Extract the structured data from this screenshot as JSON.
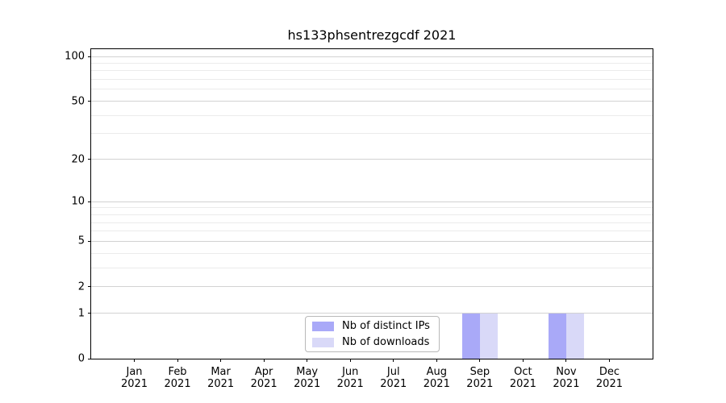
{
  "figure": {
    "title": "hs133phsentrezgcdf 2021"
  },
  "chart_data": {
    "type": "bar",
    "title": "hs133phsentrezgcdf 2021",
    "xlabel": "",
    "ylabel": "",
    "categories": [
      "Jan",
      "Feb",
      "Mar",
      "Apr",
      "May",
      "Jun",
      "Jul",
      "Aug",
      "Sep",
      "Oct",
      "Nov",
      "Dec"
    ],
    "x_tick_year": "2021",
    "series": [
      {
        "name": "Nb of distinct IPs",
        "color": "#a9a9f8",
        "values": [
          0,
          0,
          0,
          0,
          0,
          0,
          0,
          0,
          1,
          0,
          1,
          0
        ]
      },
      {
        "name": "Nb of downloads",
        "color": "#d9d9f8",
        "values": [
          0,
          0,
          0,
          0,
          0,
          0,
          0,
          0,
          1,
          0,
          1,
          0
        ]
      }
    ],
    "yscale": "log1p",
    "ylim": [
      0,
      112
    ],
    "y_major_ticks": [
      0,
      1,
      2,
      5,
      10,
      20,
      50,
      100
    ],
    "y_minor_ticks": [
      3,
      4,
      6,
      7,
      8,
      9,
      30,
      40,
      60,
      70,
      80,
      90
    ],
    "grid": "horizontal",
    "legend_position": "inside-bottom-center-left"
  },
  "colors": {
    "background": "#ffffff",
    "text": "#000000",
    "spine": "#000000",
    "grid_major": "#d2d2d2",
    "grid_minor": "#ebebeb",
    "legend_border": "#b9b9b9",
    "bar_distinct_ips": "#a9a9f8",
    "bar_downloads": "#d9d9f8"
  }
}
